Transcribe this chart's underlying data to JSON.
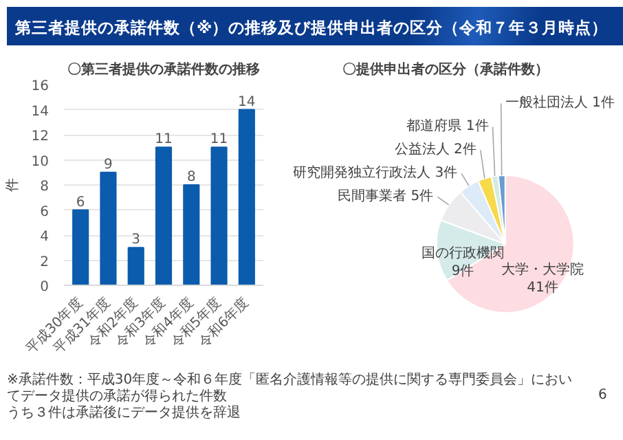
{
  "chart_data": [
    {
      "type": "bar",
      "title": "〇第三者提供の承諾件数の推移",
      "ylabel": "件",
      "categories": [
        "平成30年度",
        "平成31年度",
        "令和2年度",
        "令和3年度",
        "令和4年度",
        "令和5年度",
        "令和6年度"
      ],
      "values": [
        6,
        9,
        3,
        11,
        8,
        11,
        14
      ],
      "color": "#0b5cad",
      "ylim": [
        0,
        16
      ],
      "yticks": [
        0,
        2,
        4,
        6,
        8,
        10,
        12,
        14,
        16
      ],
      "grid": "y",
      "data_labels": true,
      "annotations": [
        "第三者提供の承諾件数（※）の推移及び提供申出者の区分（令和７年３月時点）",
        "※承諾件数：平成30年度～令和６年度「匿名介護情報等の提供に関する専門委員会」においてデータ提供の承諾が得られた件数",
        "うち３件は承諾後にデータ提供を辞退",
        "6"
      ]
    },
    {
      "type": "pie",
      "title": "〇提供申出者の区分（承諾件数）",
      "categories": [
        "大学・大学院",
        "国の行政機関",
        "民間事業者",
        "研究開発独立行政法人",
        "公益法人",
        "都道府県",
        "一般社団法人"
      ],
      "values": [
        41,
        9,
        5,
        3,
        2,
        1,
        1
      ],
      "value_labels": [
        "41件",
        "9件",
        "5件",
        "3件",
        "2件",
        "1件",
        "1件"
      ],
      "colors": [
        "#fddde2",
        "#d5ebea",
        "#ececef",
        "#ddeaf7",
        "#f7d94c",
        "#d3ece3",
        "#6a9bd1"
      ]
    }
  ]
}
